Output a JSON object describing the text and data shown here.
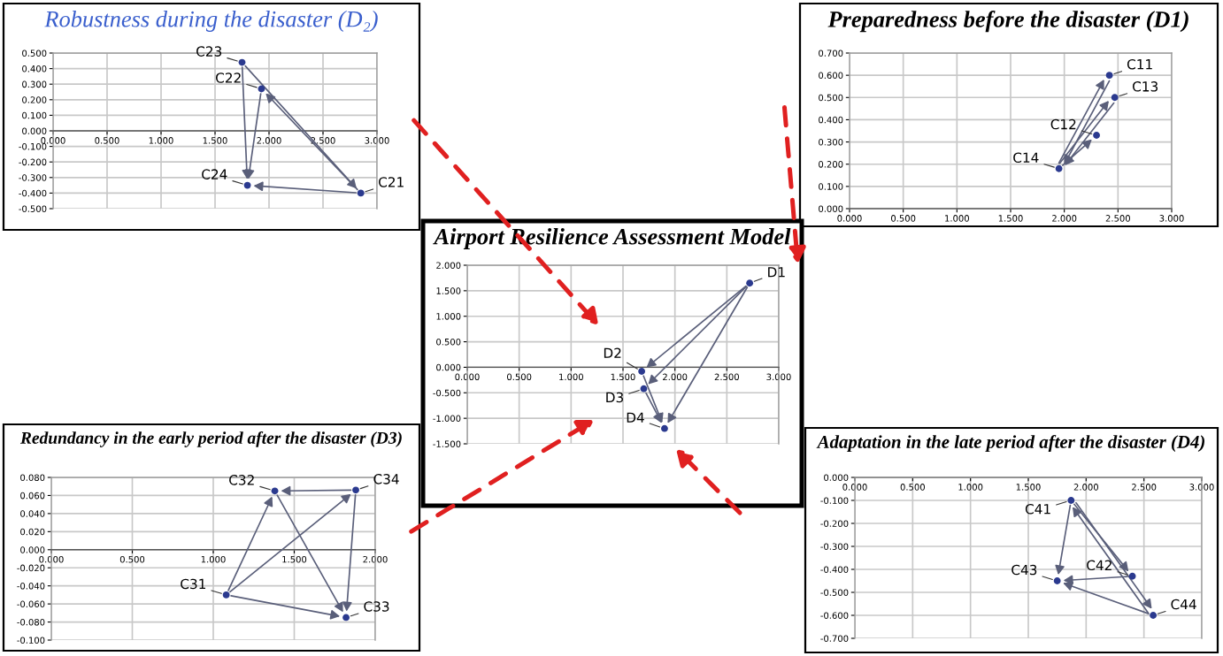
{
  "chart_data": [
    {
      "type": "scatter",
      "title": "Robustness during the disaster (D₂)",
      "xlim": [
        0,
        3
      ],
      "ylim": [
        -0.5,
        0.5
      ],
      "xticks": [
        {
          "value": 0,
          "label": "0.000"
        },
        {
          "value": 0.5,
          "label": "0.500"
        },
        {
          "value": 1,
          "label": "1.000"
        },
        {
          "value": 1.5,
          "label": "1.500"
        },
        {
          "value": 2,
          "label": "2.000"
        },
        {
          "value": 2.5,
          "label": "2.500"
        },
        {
          "value": 3,
          "label": "3.000"
        }
      ],
      "yticks": [
        {
          "value": -0.5,
          "label": "-0.500"
        },
        {
          "value": -0.4,
          "label": "-0.400"
        },
        {
          "value": -0.3,
          "label": "-0.300"
        },
        {
          "value": -0.2,
          "label": "-0.200"
        },
        {
          "value": -0.1,
          "label": "-0.100"
        },
        {
          "value": 0,
          "label": "0.000"
        },
        {
          "value": 0.1,
          "label": "0.100"
        },
        {
          "value": 0.2,
          "label": "0.200"
        },
        {
          "value": 0.3,
          "label": "0.300"
        },
        {
          "value": 0.4,
          "label": "0.400"
        },
        {
          "value": 0.5,
          "label": "0.500"
        }
      ],
      "grid": true,
      "marker": "circle",
      "series": [
        {
          "color": "#2b3a8f",
          "x": [
            2.85,
            1.93,
            1.75,
            1.8
          ],
          "values": [
            -0.4,
            0.27,
            0.44,
            -0.35
          ]
        }
      ],
      "annotations": [
        {
          "text": "C21",
          "x": 2.85,
          "y": -0.4
        },
        {
          "text": "C22",
          "x": 1.93,
          "y": 0.27
        },
        {
          "text": "C23",
          "x": 1.75,
          "y": 0.44
        },
        {
          "text": "C24",
          "x": 1.8,
          "y": -0.35
        }
      ]
    },
    {
      "type": "scatter",
      "title": "Preparedness before the disaster (D1)",
      "xlim": [
        0,
        3
      ],
      "ylim": [
        0,
        0.7
      ],
      "xticks": [
        {
          "value": 0,
          "label": "0.000"
        },
        {
          "value": 0.5,
          "label": "0.500"
        },
        {
          "value": 1,
          "label": "1.000"
        },
        {
          "value": 1.5,
          "label": "1.500"
        },
        {
          "value": 2,
          "label": "2.000"
        },
        {
          "value": 2.5,
          "label": "2.500"
        },
        {
          "value": 3,
          "label": "3.000"
        }
      ],
      "yticks": [
        {
          "value": 0,
          "label": "0.000"
        },
        {
          "value": 0.1,
          "label": "0.100"
        },
        {
          "value": 0.2,
          "label": "0.200"
        },
        {
          "value": 0.3,
          "label": "0.300"
        },
        {
          "value": 0.4,
          "label": "0.400"
        },
        {
          "value": 0.5,
          "label": "0.500"
        },
        {
          "value": 0.6,
          "label": "0.600"
        },
        {
          "value": 0.7,
          "label": "0.700"
        }
      ],
      "grid": true,
      "marker": "circle",
      "series": [
        {
          "color": "#2b3a8f",
          "x": [
            2.42,
            2.3,
            2.47,
            1.95
          ],
          "values": [
            0.6,
            0.33,
            0.5,
            0.18
          ]
        }
      ],
      "annotations": [
        {
          "text": "C11",
          "x": 2.42,
          "y": 0.6
        },
        {
          "text": "C12",
          "x": 2.3,
          "y": 0.33
        },
        {
          "text": "C13",
          "x": 2.47,
          "y": 0.5
        },
        {
          "text": "C14",
          "x": 1.95,
          "y": 0.18
        }
      ]
    },
    {
      "type": "scatter",
      "title": "Airport Resilience Assessment Model",
      "xlim": [
        0,
        3
      ],
      "ylim": [
        -1.5,
        2
      ],
      "xticks": [
        {
          "value": 0,
          "label": "0.000"
        },
        {
          "value": 0.5,
          "label": "0.500"
        },
        {
          "value": 1,
          "label": "1.000"
        },
        {
          "value": 1.5,
          "label": "1.500"
        },
        {
          "value": 2,
          "label": "2.000"
        },
        {
          "value": 2.5,
          "label": "2.500"
        },
        {
          "value": 3,
          "label": "3.000"
        }
      ],
      "yticks": [
        {
          "value": -1.5,
          "label": "-1.500"
        },
        {
          "value": -1,
          "label": "-1.000"
        },
        {
          "value": -0.5,
          "label": "-0.500"
        },
        {
          "value": 0,
          "label": "0.000"
        },
        {
          "value": 0.5,
          "label": "0.500"
        },
        {
          "value": 1,
          "label": "1.000"
        },
        {
          "value": 1.5,
          "label": "1.500"
        },
        {
          "value": 2,
          "label": "2.000"
        }
      ],
      "grid": true,
      "marker": "circle",
      "series": [
        {
          "color": "#2b3a8f",
          "x": [
            2.72,
            1.68,
            1.7,
            1.9
          ],
          "values": [
            1.65,
            -0.08,
            -0.42,
            -1.2
          ]
        }
      ],
      "annotations": [
        {
          "text": "D1",
          "x": 2.72,
          "y": 1.65
        },
        {
          "text": "D2",
          "x": 1.68,
          "y": -0.08
        },
        {
          "text": "D3",
          "x": 1.7,
          "y": -0.42
        },
        {
          "text": "D4",
          "x": 1.9,
          "y": -1.2
        }
      ]
    },
    {
      "type": "scatter",
      "title": "Redundancy in the early period after the disaster (D3)",
      "xlim": [
        0,
        2
      ],
      "ylim": [
        -0.1,
        0.08
      ],
      "xticks": [
        {
          "value": 0,
          "label": "0.000"
        },
        {
          "value": 0.5,
          "label": "0.500"
        },
        {
          "value": 1,
          "label": "1.000"
        },
        {
          "value": 1.5,
          "label": "1.500"
        },
        {
          "value": 2,
          "label": "2.000"
        }
      ],
      "yticks": [
        {
          "value": -0.1,
          "label": "-0.100"
        },
        {
          "value": -0.08,
          "label": "-0.080"
        },
        {
          "value": -0.06,
          "label": "-0.060"
        },
        {
          "value": -0.04,
          "label": "-0.040"
        },
        {
          "value": -0.02,
          "label": "-0.020"
        },
        {
          "value": 0,
          "label": "0.000"
        },
        {
          "value": 0.02,
          "label": "0.020"
        },
        {
          "value": 0.04,
          "label": "0.040"
        },
        {
          "value": 0.06,
          "label": "0.060"
        },
        {
          "value": 0.08,
          "label": "0.080"
        }
      ],
      "grid": true,
      "marker": "circle",
      "series": [
        {
          "color": "#2b3a8f",
          "x": [
            1.08,
            1.38,
            1.82,
            1.88
          ],
          "values": [
            -0.05,
            0.065,
            -0.075,
            0.066
          ]
        }
      ],
      "annotations": [
        {
          "text": "C31",
          "x": 1.08,
          "y": -0.05
        },
        {
          "text": "C32",
          "x": 1.38,
          "y": 0.065
        },
        {
          "text": "C33",
          "x": 1.82,
          "y": -0.075
        },
        {
          "text": "C34",
          "x": 1.88,
          "y": 0.066
        }
      ]
    },
    {
      "type": "scatter",
      "title": "Adaptation in the late period after the disaster (D4)",
      "xlim": [
        0,
        3
      ],
      "ylim": [
        -0.7,
        0
      ],
      "xticks": [
        {
          "value": 0,
          "label": "0.000"
        },
        {
          "value": 0.5,
          "label": "0.500"
        },
        {
          "value": 1,
          "label": "1.000"
        },
        {
          "value": 1.5,
          "label": "1.500"
        },
        {
          "value": 2,
          "label": "2.000"
        },
        {
          "value": 2.5,
          "label": "2.500"
        },
        {
          "value": 3,
          "label": "3.000"
        }
      ],
      "yticks": [
        {
          "value": -0.7,
          "label": "-0.700"
        },
        {
          "value": -0.6,
          "label": "-0.600"
        },
        {
          "value": -0.5,
          "label": "-0.500"
        },
        {
          "value": -0.4,
          "label": "-0.400"
        },
        {
          "value": -0.3,
          "label": "-0.300"
        },
        {
          "value": -0.2,
          "label": "-0.200"
        },
        {
          "value": -0.1,
          "label": "-0.100"
        },
        {
          "value": 0,
          "label": "0.000"
        }
      ],
      "grid": true,
      "marker": "circle",
      "series": [
        {
          "color": "#2b3a8f",
          "x": [
            1.87,
            2.4,
            1.75,
            2.58
          ],
          "values": [
            -0.1,
            -0.43,
            -0.45,
            -0.6
          ]
        }
      ],
      "annotations": [
        {
          "text": "C41",
          "x": 1.87,
          "y": -0.1
        },
        {
          "text": "C42",
          "x": 2.4,
          "y": -0.43
        },
        {
          "text": "C43",
          "x": 1.75,
          "y": -0.45
        },
        {
          "text": "C44",
          "x": 2.58,
          "y": -0.6
        }
      ]
    }
  ]
}
